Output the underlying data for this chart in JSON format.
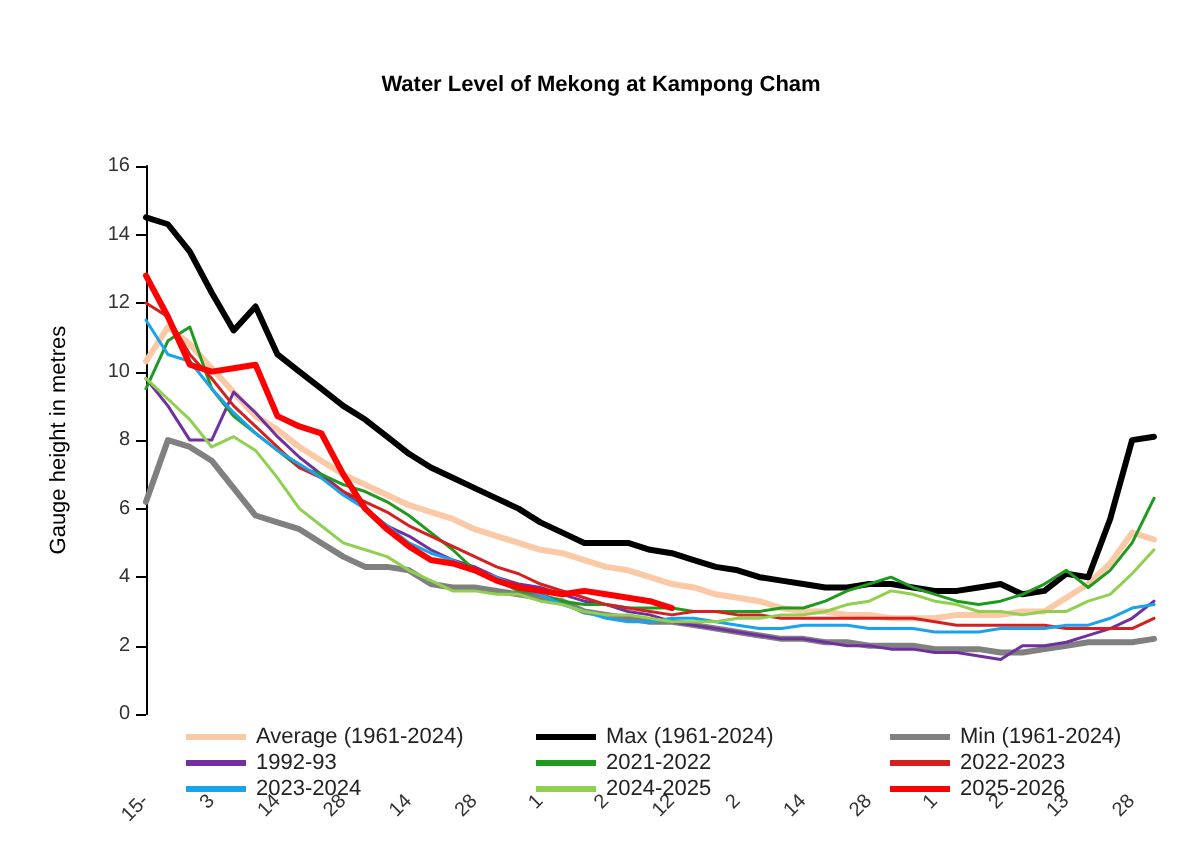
{
  "chart_data": {
    "type": "line",
    "title": "Water Level of Mekong at Kampong Cham",
    "ylabel": "Gauge height in metres",
    "categories": [
      "15-",
      null,
      null,
      "3",
      null,
      null,
      "14",
      null,
      null,
      "28",
      null,
      null,
      "14",
      null,
      null,
      "28",
      null,
      null,
      "1",
      null,
      null,
      "2",
      null,
      null,
      "12",
      null,
      null,
      "2",
      null,
      null,
      "14",
      null,
      null,
      "28",
      null,
      null,
      "1",
      null,
      null,
      "2",
      null,
      null,
      "13",
      null,
      null,
      "28",
      null
    ],
    "ylim": [
      0,
      16
    ],
    "yticks": [
      0,
      2,
      4,
      6,
      8,
      10,
      12,
      14,
      16
    ],
    "grid": false,
    "legend": "bottom",
    "marker": "none",
    "line_style": "solid",
    "series": [
      {
        "name": "Average (1961-2024)",
        "color": "#fbc9a5",
        "values": [
          10.3,
          11.3,
          10.8,
          10.1,
          9.4,
          8.7,
          8.3,
          7.8,
          7.4,
          7.0,
          6.7,
          6.4,
          6.1,
          5.9,
          5.7,
          5.4,
          5.2,
          5.0,
          4.8,
          4.7,
          4.5,
          4.3,
          4.2,
          4.0,
          3.8,
          3.7,
          3.5,
          3.4,
          3.3,
          3.1,
          3.0,
          3.0,
          2.9,
          2.9,
          2.8,
          2.8,
          2.8,
          2.9,
          2.9,
          2.9,
          3.0,
          3.0,
          3.4,
          3.8,
          4.4,
          5.3,
          5.1
        ]
      },
      {
        "name": "Max (1961-2024)",
        "color": "#000000",
        "values": [
          14.5,
          14.3,
          13.5,
          12.3,
          11.2,
          11.9,
          10.5,
          10.0,
          9.5,
          9.0,
          8.6,
          8.1,
          7.6,
          7.2,
          6.9,
          6.6,
          6.3,
          6.0,
          5.6,
          5.3,
          5.0,
          5.0,
          5.0,
          4.8,
          4.7,
          4.5,
          4.3,
          4.2,
          4.0,
          3.9,
          3.8,
          3.7,
          3.7,
          3.8,
          3.8,
          3.7,
          3.6,
          3.6,
          3.7,
          3.8,
          3.5,
          3.6,
          4.1,
          4.0,
          5.7,
          8.0,
          8.1
        ]
      },
      {
        "name": "Min (1961-2024)",
        "color": "#808080",
        "values": [
          6.2,
          8.0,
          7.8,
          7.4,
          6.6,
          5.8,
          5.6,
          5.4,
          5.0,
          4.6,
          4.3,
          4.3,
          4.2,
          3.8,
          3.7,
          3.7,
          3.6,
          3.5,
          3.4,
          3.3,
          3.0,
          2.9,
          2.8,
          2.7,
          2.7,
          2.6,
          2.5,
          2.4,
          2.3,
          2.2,
          2.2,
          2.1,
          2.1,
          2.0,
          2.0,
          2.0,
          1.9,
          1.9,
          1.9,
          1.8,
          1.8,
          1.9,
          2.0,
          2.1,
          2.1,
          2.1,
          2.2
        ]
      },
      {
        "name": "1992-93",
        "color": "#7030a0",
        "values": [
          9.8,
          9.0,
          8.0,
          8.0,
          9.4,
          8.8,
          8.1,
          7.5,
          7.0,
          6.5,
          6.0,
          5.5,
          5.2,
          4.8,
          4.5,
          4.3,
          4.0,
          3.8,
          3.7,
          3.5,
          3.3,
          3.2,
          3.0,
          2.9,
          2.7,
          2.6,
          2.5,
          2.4,
          2.3,
          2.2,
          2.2,
          2.1,
          2.0,
          2.0,
          1.9,
          1.9,
          1.8,
          1.8,
          1.7,
          1.6,
          2.0,
          2.0,
          2.1,
          2.3,
          2.5,
          2.8,
          3.3
        ]
      },
      {
        "name": "2021-2022",
        "color": "#1f9a1f",
        "values": [
          9.5,
          10.9,
          11.3,
          9.5,
          8.7,
          8.2,
          7.7,
          7.2,
          7.0,
          6.7,
          6.5,
          6.2,
          5.8,
          5.3,
          4.8,
          4.2,
          3.9,
          3.6,
          3.5,
          3.3,
          3.2,
          3.2,
          3.1,
          3.1,
          3.1,
          3.0,
          3.0,
          3.0,
          3.0,
          3.1,
          3.1,
          3.3,
          3.6,
          3.8,
          4.0,
          3.7,
          3.5,
          3.3,
          3.2,
          3.3,
          3.5,
          3.8,
          4.2,
          3.7,
          4.2,
          5.0,
          6.3
        ]
      },
      {
        "name": "2022-2023",
        "color": "#d62020",
        "values": [
          12.0,
          11.6,
          10.5,
          9.8,
          9.0,
          8.4,
          7.8,
          7.2,
          6.9,
          6.5,
          6.2,
          5.9,
          5.5,
          5.2,
          4.9,
          4.6,
          4.3,
          4.1,
          3.8,
          3.6,
          3.4,
          3.2,
          3.1,
          3.0,
          2.9,
          3.0,
          3.0,
          2.9,
          2.9,
          2.8,
          2.8,
          2.8,
          2.8,
          2.8,
          2.8,
          2.8,
          2.7,
          2.6,
          2.6,
          2.6,
          2.6,
          2.6,
          2.5,
          2.5,
          2.5,
          2.5,
          2.8
        ]
      },
      {
        "name": "2023-2024",
        "color": "#1aa3ec",
        "values": [
          11.5,
          10.5,
          10.3,
          9.5,
          8.8,
          8.2,
          7.7,
          7.3,
          6.9,
          6.4,
          6.0,
          5.5,
          5.0,
          4.7,
          4.5,
          4.2,
          4.0,
          3.7,
          3.5,
          3.2,
          3.0,
          2.8,
          2.7,
          2.7,
          2.8,
          2.8,
          2.7,
          2.6,
          2.5,
          2.5,
          2.6,
          2.6,
          2.6,
          2.5,
          2.5,
          2.5,
          2.4,
          2.4,
          2.4,
          2.5,
          2.5,
          2.5,
          2.6,
          2.6,
          2.8,
          3.1,
          3.2
        ]
      },
      {
        "name": "2024-2025",
        "color": "#8fd14f",
        "values": [
          9.8,
          9.2,
          8.6,
          7.8,
          8.1,
          7.7,
          6.9,
          6.0,
          5.5,
          5.0,
          4.8,
          4.6,
          4.2,
          3.9,
          3.6,
          3.6,
          3.5,
          3.5,
          3.3,
          3.2,
          3.0,
          2.9,
          2.9,
          2.8,
          2.7,
          2.7,
          2.7,
          2.8,
          2.8,
          2.9,
          2.9,
          3.0,
          3.2,
          3.3,
          3.6,
          3.5,
          3.3,
          3.2,
          3.0,
          3.0,
          2.9,
          3.0,
          3.0,
          3.3,
          3.5,
          4.1,
          4.8
        ]
      },
      {
        "name": "2025-2026",
        "color": "#ff0000",
        "values": [
          12.8,
          11.6,
          10.2,
          10.0,
          10.1,
          10.2,
          8.7,
          8.4,
          8.2,
          7.0,
          6.0,
          5.4,
          4.9,
          4.5,
          4.4,
          4.2,
          3.9,
          3.7,
          3.6,
          3.5,
          3.6,
          3.5,
          3.4,
          3.3,
          3.1,
          null,
          null,
          null,
          null,
          null,
          null,
          null,
          null,
          null,
          null,
          null,
          null,
          null,
          null,
          null,
          null,
          null,
          null,
          null,
          null,
          null,
          null
        ]
      }
    ]
  }
}
